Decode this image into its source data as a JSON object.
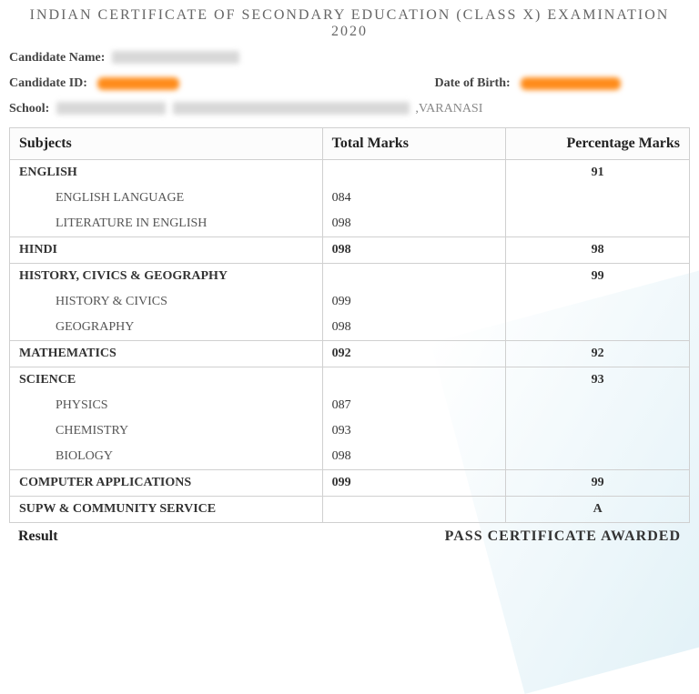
{
  "title": "INDIAN CERTIFICATE OF SECONDARY EDUCATION (CLASS X) EXAMINATION 2020",
  "labels": {
    "candidate_name": "Candidate Name:",
    "candidate_id": "Candidate ID:",
    "dob": "Date of Birth:",
    "school": "School:"
  },
  "school_suffix": ",VARANASI",
  "table": {
    "headers": [
      "Subjects",
      "Total Marks",
      "Percentage Marks"
    ],
    "rows": [
      {
        "type": "main",
        "name": "ENGLISH",
        "marks": "",
        "pct": "91"
      },
      {
        "type": "sub",
        "name": "ENGLISH LANGUAGE",
        "marks": "084",
        "pct": ""
      },
      {
        "type": "sub",
        "name": "LITERATURE IN ENGLISH",
        "marks": "098",
        "pct": ""
      },
      {
        "type": "main",
        "name": "HINDI",
        "marks": "098",
        "pct": "98"
      },
      {
        "type": "main",
        "name": "HISTORY, CIVICS & GEOGRAPHY",
        "marks": "",
        "pct": "99"
      },
      {
        "type": "sub",
        "name": "HISTORY & CIVICS",
        "marks": "099",
        "pct": ""
      },
      {
        "type": "sub",
        "name": "GEOGRAPHY",
        "marks": "098",
        "pct": ""
      },
      {
        "type": "main",
        "name": "MATHEMATICS",
        "marks": "092",
        "pct": "92"
      },
      {
        "type": "main",
        "name": "SCIENCE",
        "marks": "",
        "pct": "93"
      },
      {
        "type": "sub",
        "name": "PHYSICS",
        "marks": "087",
        "pct": ""
      },
      {
        "type": "sub",
        "name": "CHEMISTRY",
        "marks": "093",
        "pct": ""
      },
      {
        "type": "sub",
        "name": "BIOLOGY",
        "marks": "098",
        "pct": ""
      },
      {
        "type": "main",
        "name": "COMPUTER APPLICATIONS",
        "marks": "099",
        "pct": "99"
      },
      {
        "type": "main",
        "name": "SUPW & COMMUNITY SERVICE",
        "marks": "",
        "pct": "A"
      }
    ]
  },
  "result": {
    "label": "Result",
    "value": "PASS CERTIFICATE AWARDED"
  },
  "colors": {
    "orange_redact": "#ff8c1a",
    "grey_redact": "#d8d8d8",
    "border": "#d0d0d0",
    "title_color": "#666666",
    "watermark": "rgba(180,220,235,0.5)"
  },
  "redaction_widths": {
    "name": 140,
    "id": 90,
    "dob": 110,
    "school_code": 120,
    "school_name": 260
  }
}
